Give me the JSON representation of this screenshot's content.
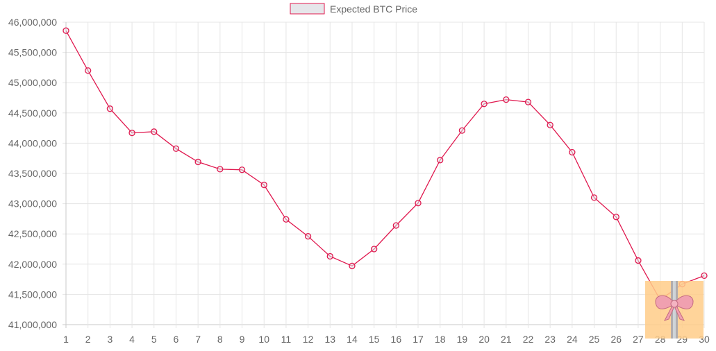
{
  "chart_data": {
    "type": "line",
    "title": "",
    "xlabel": "",
    "ylabel": "",
    "x": [
      "1",
      "2",
      "3",
      "4",
      "5",
      "6",
      "7",
      "8",
      "9",
      "10",
      "11",
      "12",
      "13",
      "14",
      "15",
      "16",
      "17",
      "18",
      "19",
      "20",
      "21",
      "22",
      "23",
      "24",
      "25",
      "26",
      "27",
      "28",
      "29",
      "30"
    ],
    "series": [
      {
        "name": "Expected BTC Price",
        "values": [
          45860000,
          45200000,
          44570000,
          44170000,
          44190000,
          43910000,
          43690000,
          43570000,
          43560000,
          43310000,
          42740000,
          42460000,
          42130000,
          41970000,
          42250000,
          42640000,
          43010000,
          43720000,
          44210000,
          44650000,
          44720000,
          44680000,
          44300000,
          43850000,
          43100000,
          42780000,
          42060000,
          41410000,
          41670000,
          41810000
        ]
      }
    ],
    "ylim": [
      41000000,
      46000000
    ],
    "y_ticks": [
      "41,000,000",
      "41,500,000",
      "42,000,000",
      "42,500,000",
      "43,000,000",
      "43,500,000",
      "44,000,000",
      "44,500,000",
      "45,000,000",
      "45,500,000",
      "46,000,000"
    ],
    "grid": true,
    "legend_position": "top",
    "line_color": "#e0194f",
    "legend_box_fill": "#e6e6ea"
  },
  "gift_icon": {
    "name": "gift-ribbon-icon",
    "background": "#ffcc88",
    "ribbon": "#f0a0b0"
  }
}
